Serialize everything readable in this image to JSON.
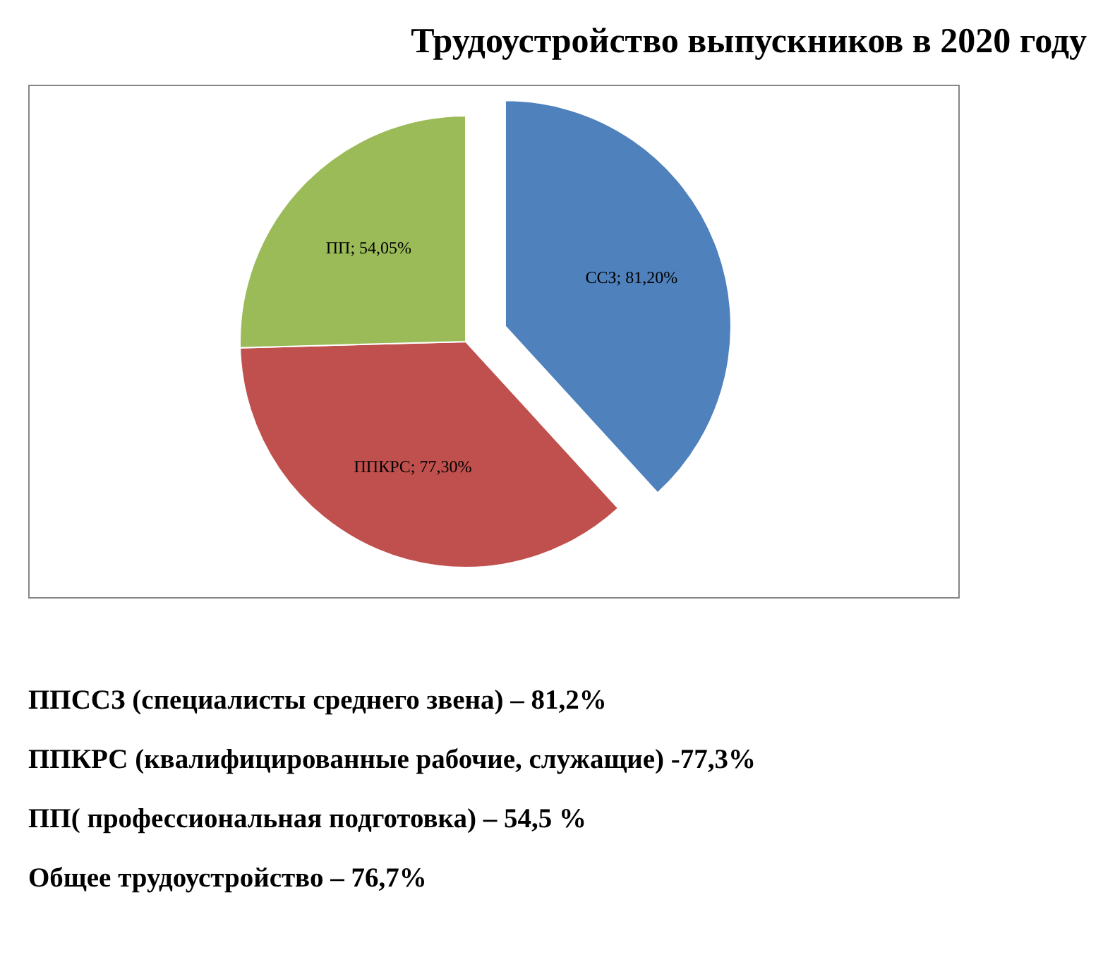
{
  "chart_data": {
    "type": "pie",
    "title": "Трудоустройство выпускников в 2020 году",
    "categories": [
      "ССЗ",
      "ППКРС",
      "ПП"
    ],
    "values": [
      81.2,
      77.3,
      54.05
    ],
    "colors": [
      "#4f81bd",
      "#c0504d",
      "#9bbb59"
    ],
    "value_labels": [
      "81,20%",
      "77,30%",
      "54,05%"
    ],
    "annotations": [
      "ППССЗ (специалисты среднего звена) – 81,2%",
      "ППКРС (квалифицированные рабочие, служащие) -77,3%",
      "ПП( профессиональная подготовка) – 54,5 %",
      "Общее трудоустройство – 76,7%"
    ]
  }
}
